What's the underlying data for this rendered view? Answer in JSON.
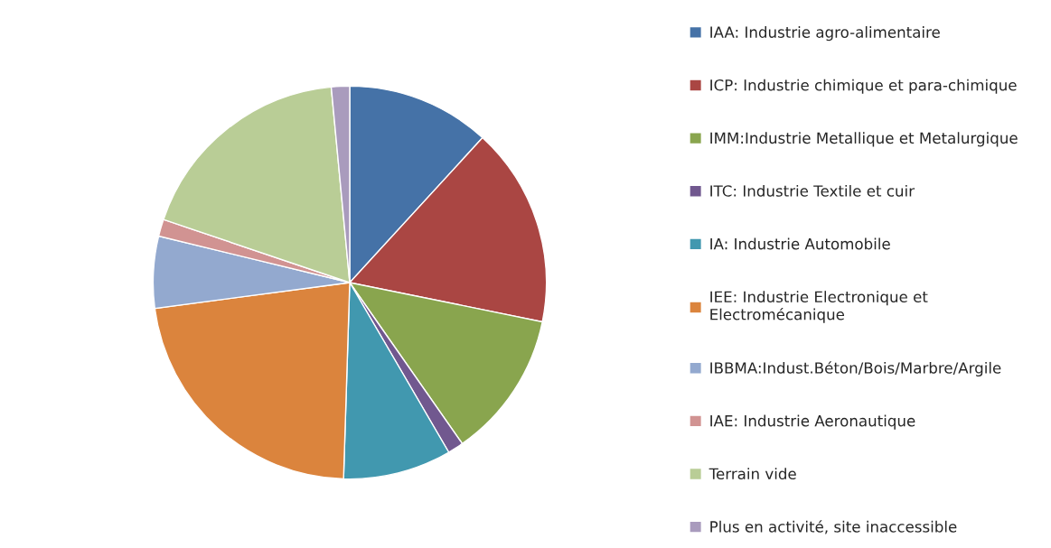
{
  "chart_data": {
    "type": "pie",
    "categories": [
      "IAA: Industrie agro-alimentaire",
      "ICP: Industrie chimique et para-chimique",
      "IMM:Industrie Metallique et Metalurgique",
      "ITC: Industrie Textile et cuir",
      "IA: Industrie Automobile",
      "IEE: Industrie Electronique et\nElectromécanique",
      "IBBMA:Indust.Béton/Bois/Marbre/Argile",
      "IAE: Industrie Aeronautique",
      "Terrain vide",
      "Plus en activité, site inaccessible"
    ],
    "values": [
      11.8,
      16.4,
      12.1,
      1.3,
      8.9,
      22.4,
      5.9,
      1.4,
      18.3,
      1.5
    ],
    "colors": [
      "#4572a7",
      "#aa4643",
      "#89a54e",
      "#71588f",
      "#4198af",
      "#db843d",
      "#93a9cf",
      "#d19392",
      "#b9cd96",
      "#a99bbd"
    ],
    "legend": "right"
  }
}
